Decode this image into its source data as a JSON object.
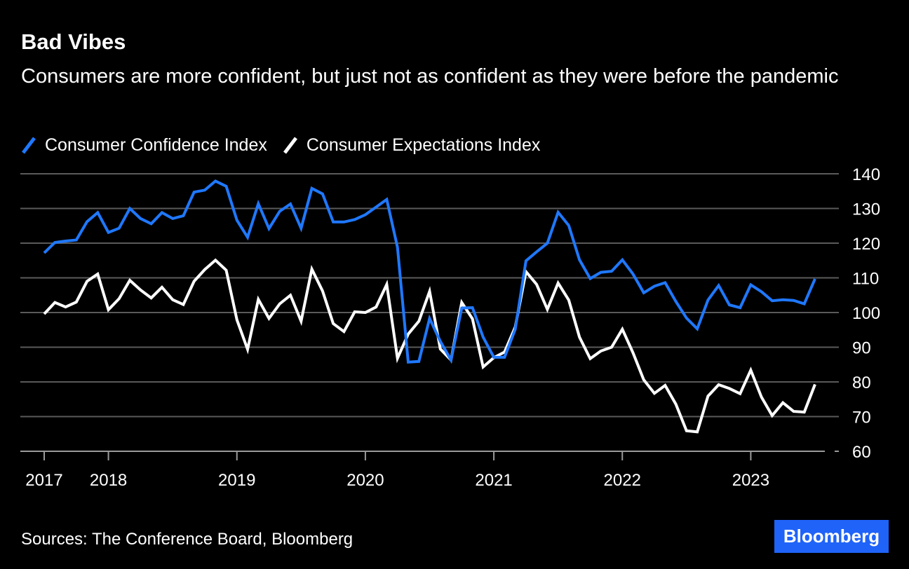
{
  "chart_data": {
    "type": "line",
    "title": "Bad Vibes",
    "subtitle": "Consumers are more confident, but just not as confident as they were before the pandemic",
    "ylim": [
      60,
      140
    ],
    "yticks": [
      60,
      70,
      80,
      90,
      100,
      110,
      120,
      130,
      140
    ],
    "xticks": [
      {
        "label": "2017",
        "pos": 0
      },
      {
        "label": "2018",
        "pos": 5
      },
      {
        "label": "2019",
        "pos": 15
      },
      {
        "label": "2020",
        "pos": 25
      },
      {
        "label": "2021",
        "pos": 35
      },
      {
        "label": "2022",
        "pos": 45
      },
      {
        "label": "2023",
        "pos": 55
      }
    ],
    "xlim": [
      0,
      60
    ],
    "grid": true,
    "legend_position": "top-left",
    "series": [
      {
        "name": "Consumer Confidence Index",
        "color": "#1f78ff",
        "values": [
          117.2,
          120.2,
          120.6,
          120.9,
          126.2,
          128.8,
          123.1,
          124.3,
          130.0,
          127.1,
          125.6,
          128.8,
          127.1,
          127.9,
          134.7,
          135.3,
          137.9,
          136.4,
          126.6,
          121.7,
          131.4,
          124.2,
          129.2,
          131.3,
          124.3,
          135.8,
          134.2,
          126.1,
          126.1,
          126.8,
          128.2,
          130.4,
          132.6,
          118.8,
          85.7,
          85.9,
          98.3,
          91.7,
          86.3,
          101.3,
          101.4,
          92.9,
          87.1,
          87.1,
          95.2,
          114.9,
          117.5,
          120.0,
          128.9,
          125.1,
          115.2,
          109.8,
          111.6,
          111.9,
          115.2,
          111.1,
          105.7,
          107.6,
          108.6,
          103.2,
          98.4,
          95.3,
          103.6,
          107.8,
          102.2,
          101.4,
          108.0,
          106.0,
          103.4,
          103.7,
          103.5,
          102.5,
          109.7
        ]
      },
      {
        "name": "Consumer Expectations Index",
        "color": "#ffffff",
        "values": [
          99.6,
          102.9,
          101.6,
          103.0,
          109.0,
          111.1,
          100.8,
          104.0,
          109.3,
          106.5,
          104.2,
          107.3,
          103.7,
          102.3,
          109.0,
          112.4,
          115.1,
          112.2,
          97.9,
          89.4,
          103.8,
          98.3,
          102.5,
          105.0,
          97.5,
          112.5,
          106.2,
          96.8,
          94.5,
          100.2,
          100.0,
          101.6,
          108.1,
          86.8,
          93.8,
          97.5,
          106.1,
          89.5,
          86.3,
          102.9,
          98.2,
          84.3,
          87.0,
          88.6,
          95.8,
          111.8,
          108.1,
          100.9,
          108.5,
          103.6,
          92.9,
          86.7,
          88.9,
          90.0,
          95.2,
          88.4,
          80.6,
          76.7,
          79.0,
          73.6,
          65.9,
          65.6,
          75.9,
          79.2,
          78.1,
          76.6,
          83.4,
          75.6,
          70.3,
          74.0,
          71.5,
          71.3,
          79.3
        ]
      }
    ]
  },
  "footer": {
    "source": "Sources: The Conference Board, Bloomberg",
    "brand": "Bloomberg"
  }
}
